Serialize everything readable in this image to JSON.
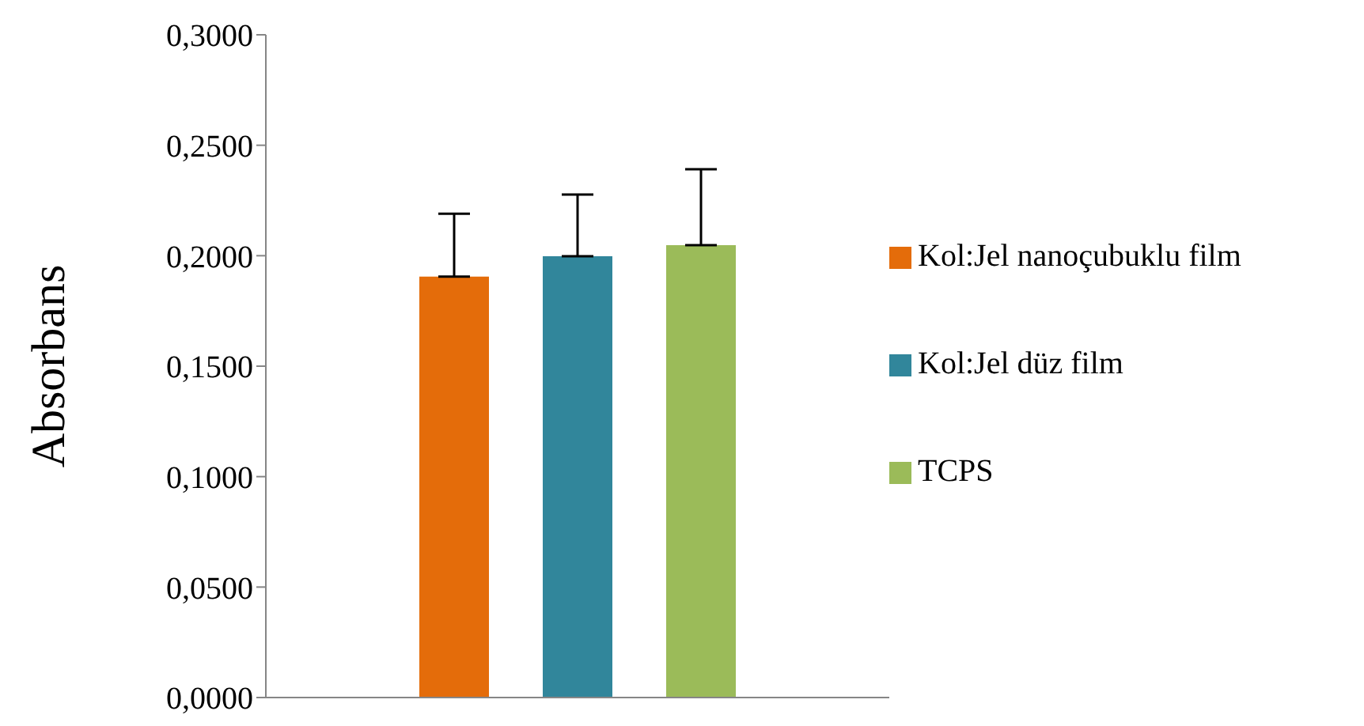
{
  "chart_data": {
    "type": "bar",
    "ylabel": "Absorbans",
    "categories": [
      null
    ],
    "series": [
      {
        "name": "Kol:Jel nanoçubuklu film",
        "color": "#e46c0a",
        "values": [
          0.1905
        ],
        "errors": [
          [
            0.1905,
            0.219
          ]
        ]
      },
      {
        "name": "Kol:Jel düz film",
        "color": "#31869b",
        "values": [
          0.1998
        ],
        "errors": [
          [
            0.1998,
            0.2277
          ]
        ]
      },
      {
        "name": "TCPS",
        "color": "#9bbb59",
        "values": [
          0.2048
        ],
        "errors": [
          [
            0.2048,
            0.2391
          ]
        ]
      }
    ],
    "ylim": [
      0,
      0.3
    ],
    "yticks": [
      {
        "value": 0,
        "label": "0,0000"
      },
      {
        "value": 0.05,
        "label": "0,0500"
      },
      {
        "value": 0.1,
        "label": "0,1000"
      },
      {
        "value": 0.15,
        "label": "0,1500"
      },
      {
        "value": 0.2,
        "label": "0,2000"
      },
      {
        "value": 0.25,
        "label": "0,2500"
      },
      {
        "value": 0.3,
        "label": "0,3000"
      }
    ],
    "grid": false,
    "legend": "right"
  }
}
